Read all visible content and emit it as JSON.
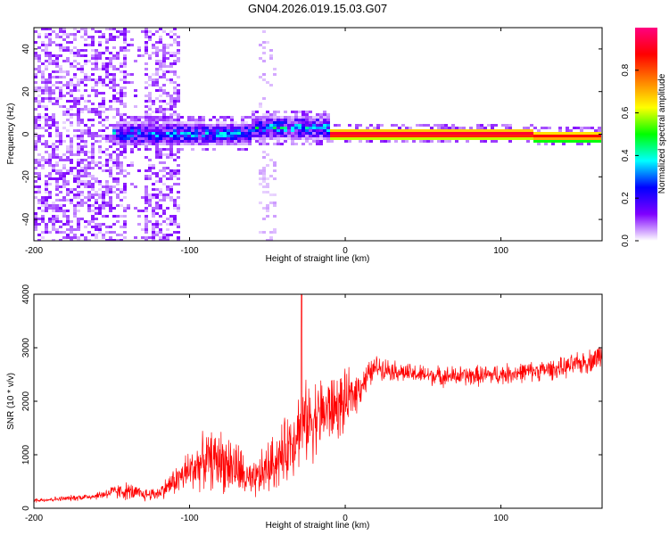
{
  "title": "GN04.2026.019.15.03.G07",
  "chart_data": [
    {
      "type": "heatmap",
      "xlabel": "Height of straight line (km)",
      "ylabel": "Frequency (Hz)",
      "xlim": [
        -200,
        165
      ],
      "ylim": [
        -50,
        50
      ],
      "xticks": [
        -200,
        -100,
        0,
        100
      ],
      "yticks": [
        -40,
        -20,
        0,
        20,
        40
      ],
      "colorbar": {
        "label": "Normalized spectral amplitude",
        "range": [
          0,
          1
        ],
        "ticks": [
          0.0,
          0.2,
          0.4,
          0.6,
          0.8
        ],
        "colors": [
          "#ffffff",
          "#7f00ff",
          "#0000ff",
          "#00ffff",
          "#00ff00",
          "#ffff00",
          "#ff8000",
          "#ff0000",
          "#ff0080"
        ]
      },
      "features": [
        {
          "name": "noise-region",
          "x_range": [
            -200,
            -105
          ],
          "freq_range": [
            -50,
            50
          ],
          "amplitude": 0.05
        },
        {
          "name": "gap",
          "x_range": [
            -140,
            -130
          ],
          "amplitude": 0.02
        },
        {
          "name": "weak-streak",
          "x_range": [
            -55,
            -45
          ],
          "freq_range": [
            -50,
            50
          ],
          "amplitude": 0.02
        },
        {
          "name": "signal-band-onset",
          "x_range": [
            -150,
            -10
          ],
          "center_freq": 0,
          "amplitude": 0.35
        },
        {
          "name": "signal-band-drift",
          "x_range": [
            -60,
            -5
          ],
          "center_freq": 3,
          "amplitude": 0.4
        },
        {
          "name": "signal-band-strong",
          "x_range": [
            -10,
            120
          ],
          "center_freq": 0,
          "amplitude": 1.0
        },
        {
          "name": "signal-band-tail",
          "x_range": [
            120,
            165
          ],
          "center_freq": -1,
          "amplitude": 0.9
        }
      ]
    },
    {
      "type": "line",
      "xlabel": "Height of straight line (km)",
      "ylabel": "SNR (10 * v/v)",
      "xlim": [
        -200,
        165
      ],
      "ylim": [
        0,
        4000
      ],
      "xticks": [
        -200,
        -100,
        0,
        100
      ],
      "yticks": [
        0,
        1000,
        2000,
        3000,
        4000
      ],
      "series": [
        {
          "name": "SNR",
          "color": "#ff0000",
          "x": [
            -200,
            -180,
            -160,
            -150,
            -140,
            -130,
            -120,
            -110,
            -100,
            -90,
            -80,
            -70,
            -60,
            -50,
            -40,
            -30,
            -20,
            -10,
            0,
            10,
            20,
            40,
            60,
            80,
            100,
            120,
            140,
            160,
            165
          ],
          "y": [
            150,
            180,
            230,
            300,
            320,
            250,
            280,
            500,
            700,
            900,
            900,
            750,
            450,
            750,
            1000,
            1500,
            1700,
            1850,
            1950,
            2300,
            2650,
            2520,
            2470,
            2470,
            2500,
            2560,
            2620,
            2780,
            2900
          ],
          "noise_amplitude": [
            50,
            60,
            80,
            150,
            200,
            150,
            150,
            300,
            500,
            600,
            700,
            650,
            400,
            600,
            700,
            900,
            900,
            800,
            700,
            400,
            250,
            220,
            220,
            230,
            230,
            220,
            230,
            270,
            300
          ],
          "peak": {
            "x": -28,
            "y": 4000
          }
        }
      ]
    }
  ]
}
